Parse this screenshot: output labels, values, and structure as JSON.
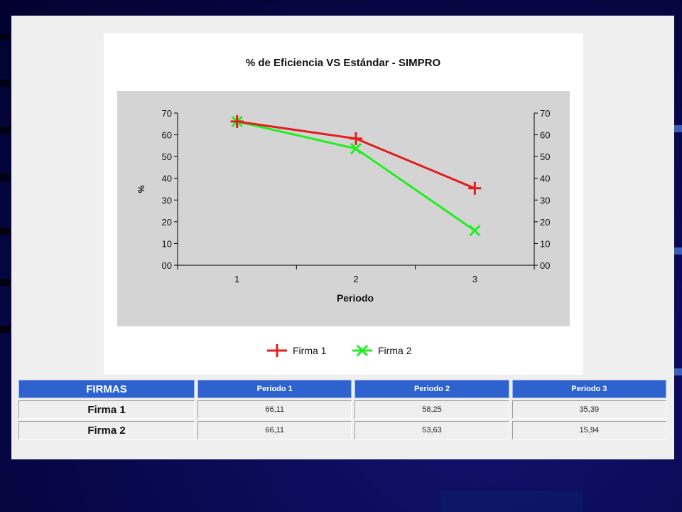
{
  "colors": {
    "firma1": "#e01e1e",
    "firma2": "#22ee22",
    "plot_bg": "#d4d4d4",
    "header_blue": "#2e63cf"
  },
  "chart_data": {
    "type": "line",
    "title": "% de Eficiencia VS Estándar - SIMPRO",
    "xlabel": "Periodo",
    "ylabel": "%",
    "categories": [
      "1",
      "2",
      "3"
    ],
    "y_ticks": [
      "00",
      "10",
      "20",
      "30",
      "40",
      "50",
      "60",
      "70"
    ],
    "ylim": [
      0,
      70
    ],
    "secondary_y_axis": true,
    "grid": false,
    "legend_position": "bottom",
    "series": [
      {
        "name": "Firma 1",
        "marker": "plus",
        "color": "#e01e1e",
        "values": [
          66.11,
          58.25,
          35.39
        ]
      },
      {
        "name": "Firma 2",
        "marker": "x",
        "color": "#22ee22",
        "values": [
          66.11,
          53.63,
          15.94
        ]
      }
    ]
  },
  "table": {
    "headers": [
      "FIRMAS",
      "Periodo 1",
      "Periodo 2",
      "Periodo 3"
    ],
    "rows": [
      {
        "name": "Firma 1",
        "values": [
          "66,11",
          "58,25",
          "35,39"
        ]
      },
      {
        "name": "Firma 2",
        "values": [
          "66,11",
          "53,63",
          "15,94"
        ]
      }
    ]
  }
}
